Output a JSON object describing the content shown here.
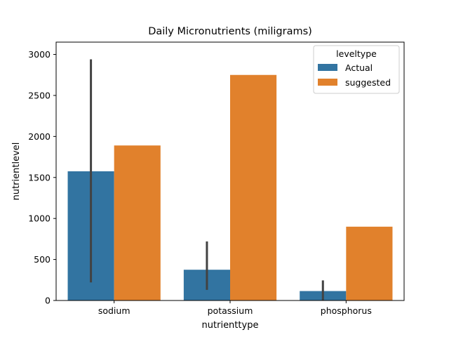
{
  "chart_data": {
    "type": "bar",
    "title": "Daily Micronutrients (miligrams)",
    "xlabel": "nutrienttype",
    "ylabel": "nutrientlevel",
    "categories": [
      "sodium",
      "potassium",
      "phosphorus"
    ],
    "ylim": [
      0,
      3150
    ],
    "yticks": [
      0,
      500,
      1000,
      1500,
      2000,
      2500,
      3000
    ],
    "grid": false,
    "legend": {
      "title": "leveltype",
      "placement": "top-right"
    },
    "series": [
      {
        "name": "Actual",
        "color": "#3274a1",
        "values": [
          1575,
          375,
          115
        ],
        "error_low": [
          220,
          130,
          0
        ],
        "error_high": [
          2940,
          720,
          245
        ]
      },
      {
        "name": "suggested",
        "color": "#e1812c",
        "values": [
          1890,
          2750,
          900
        ]
      }
    ]
  }
}
